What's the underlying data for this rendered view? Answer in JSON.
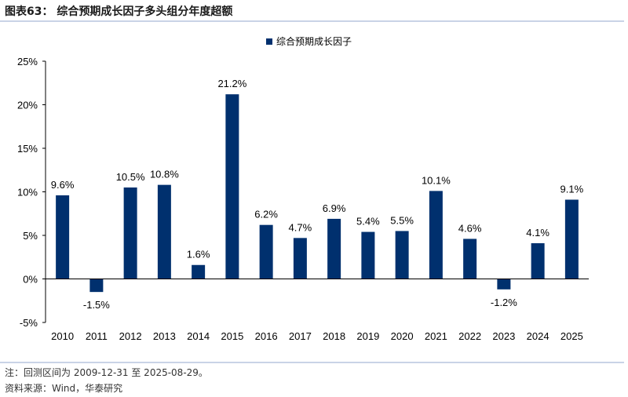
{
  "figure_title": "图表63： 综合预期成长因子多头组分年度超额",
  "notes": {
    "note_line": "注：回测区间为 2009-12-31 至 2025-08-29。",
    "source_line": "资料来源：Wind，华泰研究"
  },
  "colors": {
    "bar": "#00306E",
    "rule": "#C9D3E6",
    "axis": "#000000"
  },
  "chart_data": {
    "type": "bar",
    "title": "",
    "xlabel": "",
    "ylabel": "",
    "legend": {
      "entries": [
        "综合预期成长因子"
      ],
      "position": "top-center"
    },
    "series": [
      {
        "name": "综合预期成长因子",
        "values": [
          9.6,
          -1.5,
          10.5,
          10.8,
          1.6,
          21.2,
          6.2,
          4.7,
          6.9,
          5.4,
          5.5,
          10.1,
          4.6,
          -1.2,
          4.1,
          9.1
        ],
        "labels": [
          "9.6%",
          "-1.5%",
          "10.5%",
          "10.8%",
          "1.6%",
          "21.2%",
          "6.2%",
          "4.7%",
          "6.9%",
          "5.4%",
          "5.5%",
          "10.1%",
          "4.6%",
          "-1.2%",
          "4.1%",
          "9.1%"
        ]
      }
    ],
    "categories": [
      "2010",
      "2011",
      "2012",
      "2013",
      "2014",
      "2015",
      "2016",
      "2017",
      "2018",
      "2019",
      "2020",
      "2021",
      "2022",
      "2023",
      "2024",
      "2025"
    ],
    "ylim": [
      -5,
      25
    ],
    "yticks": [
      -5,
      0,
      5,
      10,
      15,
      20,
      25
    ],
    "ytick_labels": [
      "-5%",
      "0%",
      "5%",
      "10%",
      "15%",
      "20%",
      "25%"
    ],
    "grid": false,
    "unit": "%"
  }
}
